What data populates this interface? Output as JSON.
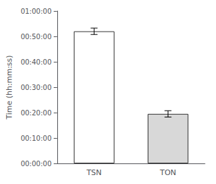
{
  "chart_data": {
    "type": "bar",
    "categories": [
      "TSN",
      "TON"
    ],
    "values": [
      3120,
      1170
    ],
    "errors": [
      75,
      75
    ],
    "colors": [
      "white",
      "#d8d8d8"
    ],
    "ylabel": "Time (hh:mm:ss)",
    "ylim": [
      0,
      3600
    ],
    "yticks": [
      {
        "value": 0,
        "label": "00:00:00"
      },
      {
        "value": 600,
        "label": "00:10:00"
      },
      {
        "value": 1200,
        "label": "00:20:00"
      },
      {
        "value": 1800,
        "label": "00:30:00"
      },
      {
        "value": 2400,
        "label": "00:40:00"
      },
      {
        "value": 3000,
        "label": "00:50:00"
      },
      {
        "value": 3600,
        "label": "01:00:00"
      }
    ],
    "grid": false
  }
}
